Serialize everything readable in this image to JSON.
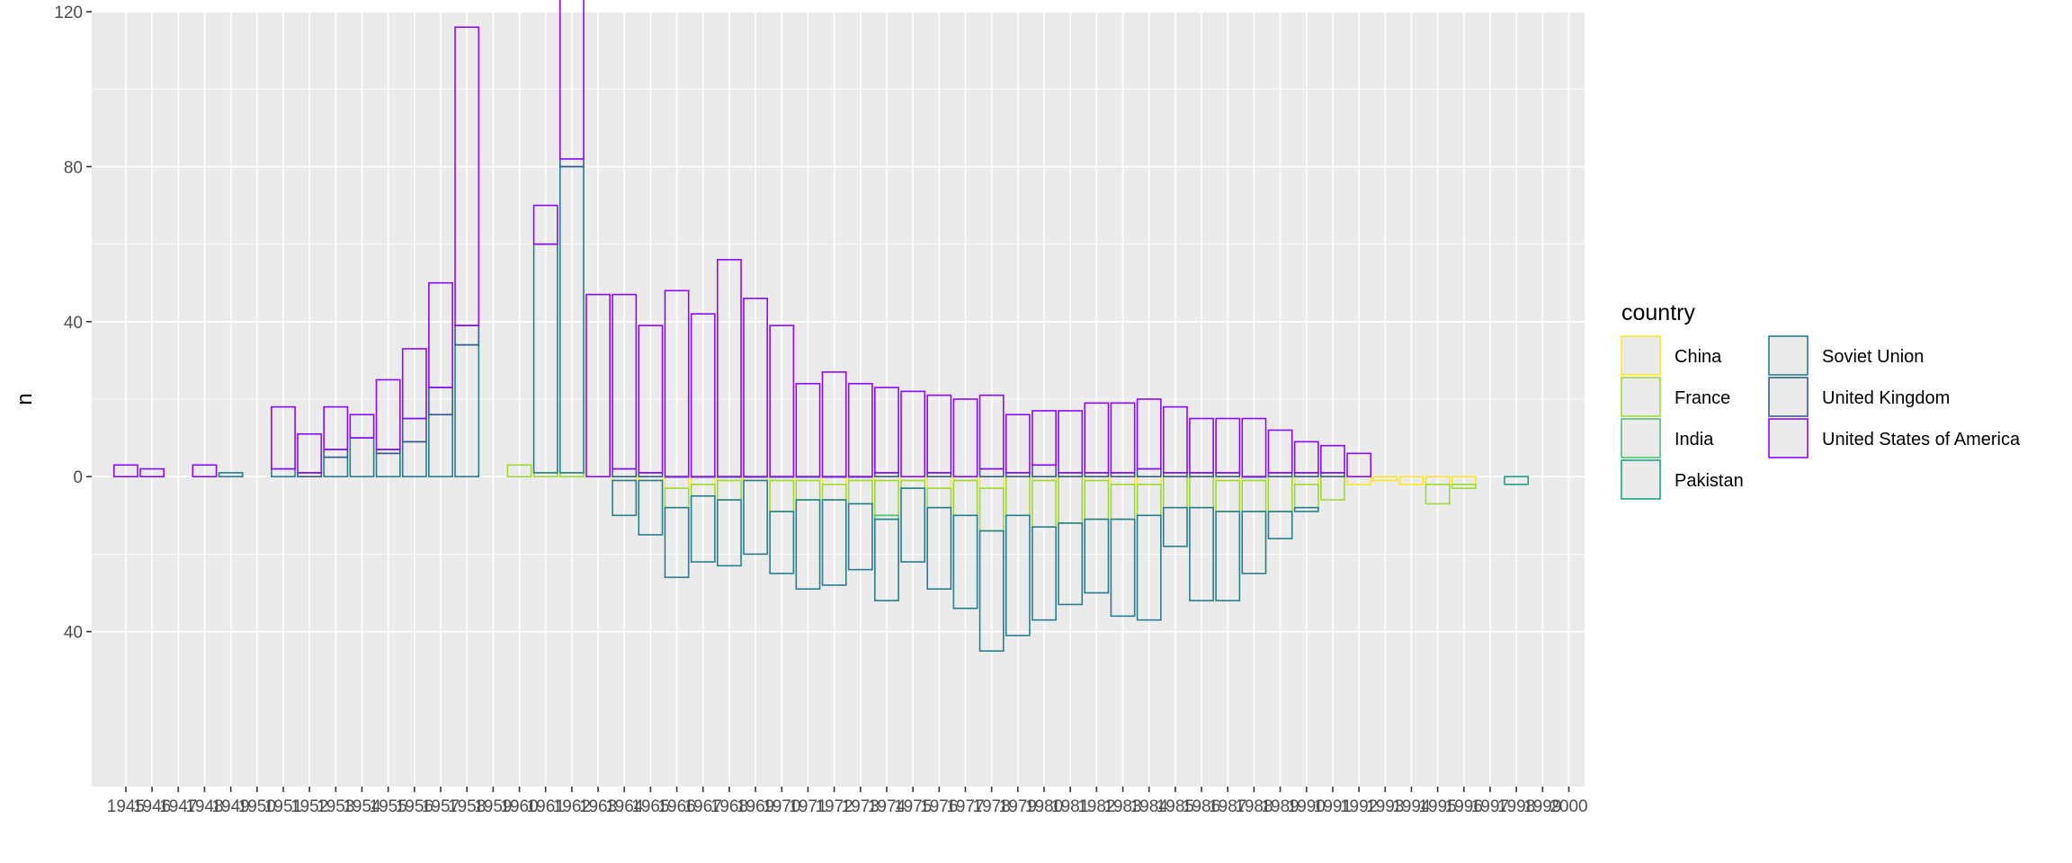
{
  "chart_data": {
    "type": "bar",
    "title": "",
    "xlabel": "",
    "ylabel": "n",
    "ylim": [
      -80,
      120
    ],
    "x_range": [
      1943.7,
      2000.6
    ],
    "y_tick_values": [
      -40,
      0,
      40,
      80,
      120
    ],
    "y_tick_labels": [
      "40",
      "0",
      "40",
      "80",
      "120"
    ],
    "x_ticks": [
      1945,
      1946,
      1947,
      1948,
      1949,
      1950,
      1951,
      1952,
      1953,
      1954,
      1955,
      1956,
      1957,
      1958,
      1959,
      1960,
      1961,
      1962,
      1963,
      1964,
      1965,
      1966,
      1967,
      1968,
      1969,
      1970,
      1971,
      1972,
      1973,
      1974,
      1975,
      1976,
      1977,
      1978,
      1979,
      1980,
      1981,
      1982,
      1983,
      1984,
      1985,
      1986,
      1987,
      1988,
      1989,
      1990,
      1991,
      1992,
      1993,
      1994,
      1995,
      1996,
      1997,
      1998,
      1999,
      2000
    ],
    "grid": true,
    "background": "#ebebeb",
    "legend": {
      "title": "country",
      "position": "right",
      "ncol": 2
    },
    "series": [
      {
        "name": "China",
        "color": "#fde725",
        "values": {
          "1964": -1,
          "1965": -1,
          "1966": -3,
          "1967": -2,
          "1968": -1,
          "1969": -1,
          "1970": -1,
          "1971": -1,
          "1972": -2,
          "1973": -1,
          "1974": -1,
          "1975": -1,
          "1976": -3,
          "1977": -1,
          "1978": -3,
          "1980": -1,
          "1982": -1,
          "1983": -2,
          "1984": -2,
          "1987": -1,
          "1988": -1,
          "1990": -2,
          "1992": -2,
          "1993": -1,
          "1994": -2,
          "1995": -2,
          "1996": -2
        }
      },
      {
        "name": "France",
        "color": "#a0da39",
        "values": {
          "1960": 3,
          "1961": 1,
          "1962": 1,
          "1966": -5,
          "1967": -3,
          "1968": -5,
          "1970": -8,
          "1971": -5,
          "1972": -4,
          "1973": -6,
          "1974": -9,
          "1975": -2,
          "1976": -5,
          "1977": -9,
          "1978": -11,
          "1979": -10,
          "1980": -12,
          "1981": -12,
          "1982": -10,
          "1983": -9,
          "1984": -8,
          "1985": -8,
          "1986": -8,
          "1987": -8,
          "1988": -8,
          "1989": -9,
          "1990": -6,
          "1991": -6,
          "1995": -5,
          "1996": -1
        }
      },
      {
        "name": "India",
        "color": "#4ac16d",
        "values": {
          "1974": -1
        }
      },
      {
        "name": "Pakistan",
        "color": "#1fa187",
        "values": {
          "1998": -2
        }
      },
      {
        "name": "Soviet Union",
        "color": "#277f8e",
        "values": {
          "1949": 1,
          "1951": 2,
          "1953": 5,
          "1954": 10,
          "1955": 6,
          "1956": 9,
          "1957": 16,
          "1958": 34,
          "1961": 59,
          "1962": 79,
          "1964": -9,
          "1965": -14,
          "1966": -18,
          "1967": -17,
          "1968": -17,
          "1969": -19,
          "1970": -16,
          "1971": -23,
          "1972": -22,
          "1973": -17,
          "1974": -21,
          "1975": -19,
          "1976": -21,
          "1977": -24,
          "1978": -31,
          "1979": -31,
          "1980": -24,
          "1981": -21,
          "1982": -19,
          "1983": -25,
          "1984": -27,
          "1985": -10,
          "1986": -24,
          "1987": -23,
          "1988": -16,
          "1989": -7,
          "1990": -1
        }
      },
      {
        "name": "United Kingdom",
        "color": "#365c8d",
        "values": {
          "1952": 1,
          "1953": 2,
          "1955": 1,
          "1956": 6,
          "1957": 7,
          "1958": 5,
          "1962": 2,
          "1964": 2,
          "1965": 1,
          "1966": 0,
          "1967": 0,
          "1968": 0,
          "1969": 0,
          "1970": 0,
          "1971": 0,
          "1972": 0,
          "1973": 0,
          "1974": 1,
          "1976": 1,
          "1978": 2,
          "1979": 1,
          "1980": 3,
          "1981": 1,
          "1982": 1,
          "1983": 1,
          "1984": 2,
          "1985": 1,
          "1986": 1,
          "1987": 1,
          "1988": 0,
          "1989": 1,
          "1990": 1,
          "1991": 1
        }
      },
      {
        "name": "United States of America",
        "color": "#8b0aff",
        "values": {
          "1945": 3,
          "1946": 2,
          "1948": 3,
          "1951": 16,
          "1952": 10,
          "1953": 11,
          "1954": 6,
          "1955": 18,
          "1956": 18,
          "1957": 27,
          "1958": 77,
          "1961": 10,
          "1962": 96,
          "1963": 47,
          "1964": 45,
          "1965": 38,
          "1966": 48,
          "1967": 42,
          "1968": 56,
          "1969": 46,
          "1970": 39,
          "1971": 24,
          "1972": 27,
          "1973": 24,
          "1974": 22,
          "1975": 22,
          "1976": 20,
          "1977": 20,
          "1978": 19,
          "1979": 15,
          "1980": 14,
          "1981": 16,
          "1982": 18,
          "1983": 18,
          "1984": 18,
          "1985": 17,
          "1986": 14,
          "1987": 14,
          "1988": 15,
          "1989": 11,
          "1990": 8,
          "1991": 7,
          "1992": 6
        }
      }
    ]
  }
}
